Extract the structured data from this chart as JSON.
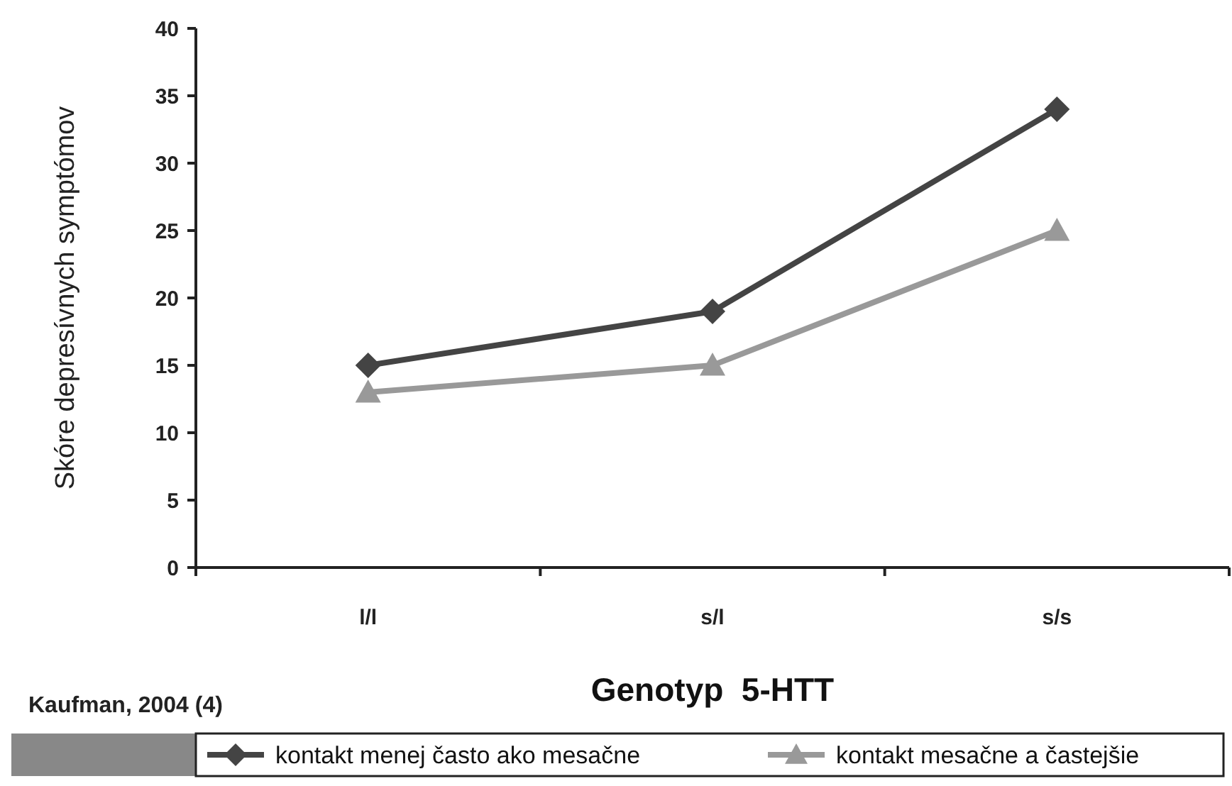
{
  "chart_data": {
    "type": "line",
    "ylabel": "Skóre depresívnych symptómov",
    "xlabel": "Genotyp  5-HTT",
    "categories": [
      "l/l",
      "s/l",
      "s/s"
    ],
    "series": [
      {
        "name": "kontakt menej často ako mesačne",
        "color": "#444444",
        "marker": "diamond",
        "values": [
          15,
          19,
          34
        ]
      },
      {
        "name": "kontakt mesačne a častejšie",
        "color": "#999999",
        "marker": "triangle",
        "values": [
          13,
          15,
          25
        ]
      }
    ],
    "ylim": [
      0,
      40
    ],
    "yticks": [
      0,
      5,
      10,
      15,
      20,
      25,
      30,
      35,
      40
    ],
    "grid": false,
    "legend": "bottom",
    "annotations": [
      "Kaufman, 2004 (4)"
    ]
  }
}
